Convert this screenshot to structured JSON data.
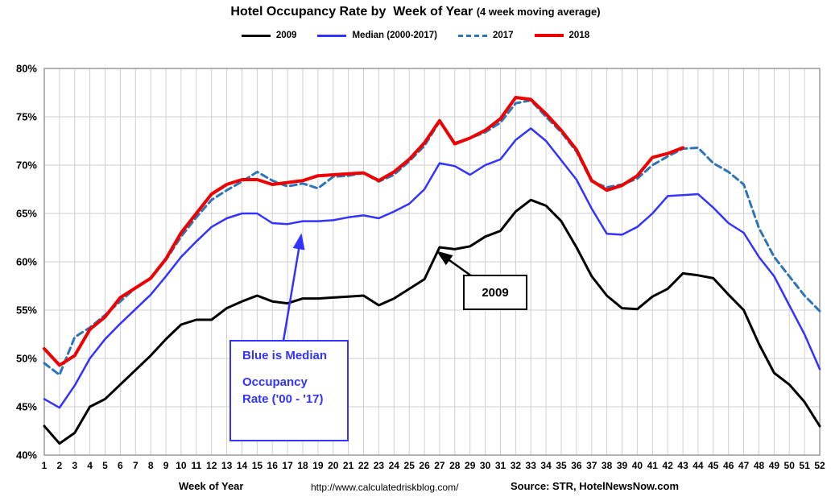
{
  "title": "Hotel Occupancy Rate by  Week of Year ",
  "subtitle": "(4 week moving average)",
  "footer": {
    "xlabel": "Week of Year",
    "url": "http://www.calculatedriskblog.com/",
    "source": "Source: STR, HotelNewsNow.com"
  },
  "annotations": {
    "black_label": "2009",
    "blue_line1": "Blue is Median",
    "blue_line2": "Occupancy",
    "blue_line3": "Rate ('00 - '17)"
  },
  "chart_data": {
    "type": "line",
    "title": "Hotel Occupancy Rate by Week of Year (4 week moving average)",
    "xlabel": "Week of Year",
    "ylabel": "Occupancy rate",
    "ylim": [
      40,
      80
    ],
    "grid": true,
    "legend_position": "top",
    "y_ticks": [
      "40%",
      "45%",
      "50%",
      "55%",
      "60%",
      "65%",
      "70%",
      "75%",
      "80%"
    ],
    "x": [
      1,
      2,
      3,
      4,
      5,
      6,
      7,
      8,
      9,
      10,
      11,
      12,
      13,
      14,
      15,
      16,
      17,
      18,
      19,
      20,
      21,
      22,
      23,
      24,
      25,
      26,
      27,
      28,
      29,
      30,
      31,
      32,
      33,
      34,
      35,
      36,
      37,
      38,
      39,
      40,
      41,
      42,
      43,
      44,
      45,
      46,
      47,
      48,
      49,
      50,
      51,
      52
    ],
    "series": [
      {
        "name": "2009",
        "color": "#000000",
        "width": 3,
        "dash": null,
        "values": [
          43.0,
          41.2,
          42.3,
          45.0,
          45.8,
          47.3,
          48.8,
          50.3,
          52.0,
          53.5,
          54.0,
          54.0,
          55.2,
          55.9,
          56.5,
          55.9,
          55.7,
          56.2,
          56.2,
          56.3,
          56.4,
          56.5,
          55.5,
          56.2,
          57.2,
          58.2,
          61.5,
          61.3,
          61.6,
          62.6,
          63.2,
          65.2,
          66.4,
          65.8,
          64.2,
          61.5,
          58.5,
          56.5,
          55.2,
          55.1,
          56.4,
          57.2,
          58.8,
          58.6,
          58.3,
          56.6,
          55.0,
          51.5,
          48.5,
          47.3,
          45.5,
          43.0
        ]
      },
      {
        "name": "Median (2000-2017)",
        "color": "#3333ff",
        "width": 2.5,
        "dash": null,
        "values": [
          45.8,
          44.9,
          47.2,
          50.0,
          52.0,
          53.6,
          55.1,
          56.6,
          58.5,
          60.5,
          62.1,
          63.6,
          64.5,
          65.0,
          65.0,
          64.0,
          63.9,
          64.2,
          64.2,
          64.3,
          64.6,
          64.8,
          64.5,
          65.2,
          66.0,
          67.5,
          70.2,
          69.9,
          69.0,
          70.0,
          70.6,
          72.6,
          73.8,
          72.5,
          70.5,
          68.5,
          65.5,
          62.9,
          62.8,
          63.6,
          65.0,
          66.8,
          66.9,
          67.0,
          65.6,
          64.0,
          63.0,
          60.5,
          58.5,
          55.5,
          52.5,
          48.9
        ]
      },
      {
        "name": "2017",
        "color": "#2e75b6",
        "width": 3,
        "dash": "8,5",
        "values": [
          49.5,
          48.3,
          52.2,
          53.2,
          54.5,
          55.9,
          57.3,
          58.3,
          60.2,
          62.6,
          64.6,
          66.4,
          67.4,
          68.3,
          69.3,
          68.4,
          67.8,
          68.1,
          67.6,
          68.8,
          68.9,
          69.2,
          68.3,
          69.0,
          70.4,
          72.0,
          74.5,
          72.3,
          72.8,
          73.4,
          74.4,
          76.4,
          76.7,
          75.0,
          73.4,
          71.4,
          68.3,
          67.7,
          68.0,
          68.6,
          70.0,
          70.9,
          71.7,
          71.8,
          70.2,
          69.3,
          68.0,
          63.5,
          60.5,
          58.5,
          56.5,
          54.9
        ]
      },
      {
        "name": "2018",
        "color": "#ee0000",
        "width": 4,
        "dash": null,
        "values": [
          51.0,
          49.3,
          50.3,
          53.0,
          54.3,
          56.3,
          57.3,
          58.3,
          60.3,
          63.0,
          65.0,
          67.0,
          68.0,
          68.5,
          68.5,
          68.0,
          68.2,
          68.4,
          68.9,
          69.0,
          69.1,
          69.2,
          68.4,
          69.3,
          70.6,
          72.3,
          74.6,
          72.2,
          72.8,
          73.6,
          74.8,
          77.0,
          76.8,
          75.3,
          73.6,
          71.6,
          68.4,
          67.4,
          67.9,
          68.9,
          70.8,
          71.2,
          71.8,
          null,
          null,
          null,
          null,
          null,
          null,
          null,
          null,
          null
        ]
      }
    ]
  }
}
